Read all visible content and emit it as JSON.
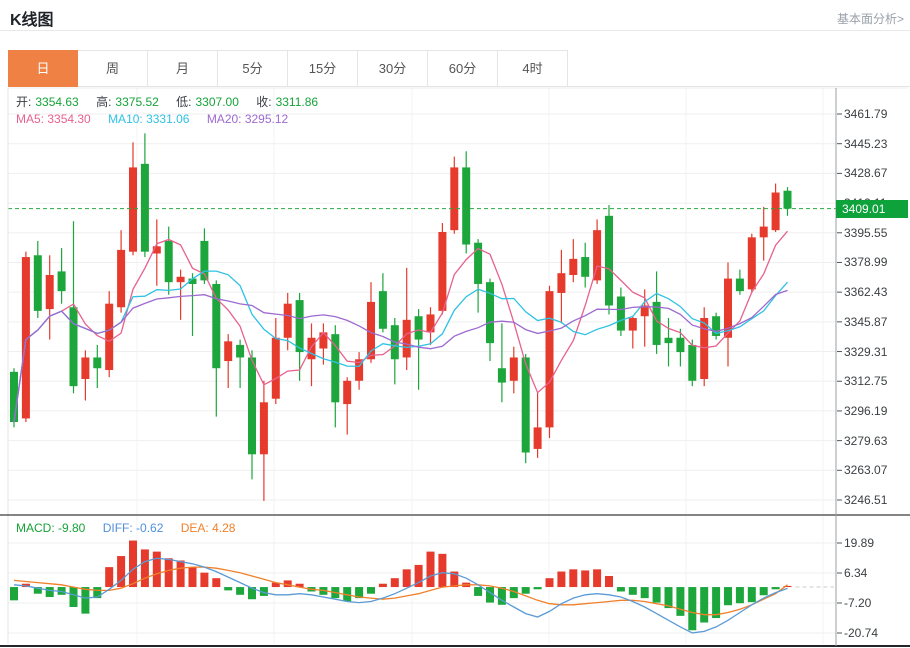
{
  "header": {
    "title": "K线图",
    "link": "基本面分析>"
  },
  "tabs": {
    "items": [
      {
        "label": "日",
        "active": true
      },
      {
        "label": "周",
        "active": false
      },
      {
        "label": "月",
        "active": false
      },
      {
        "label": "5分",
        "active": false
      },
      {
        "label": "15分",
        "active": false
      },
      {
        "label": "30分",
        "active": false
      },
      {
        "label": "60分",
        "active": false
      },
      {
        "label": "4时",
        "active": false
      }
    ]
  },
  "legend_k": {
    "open_label": "开:",
    "open_value": "3354.63",
    "high_label": "高:",
    "high_value": "3375.52",
    "low_label": "低:",
    "low_value": "3307.00",
    "close_label": "收:",
    "close_value": "3311.86"
  },
  "legend_ma": {
    "ma5": "MA5: 3354.30",
    "ma10": "MA10: 3331.06",
    "ma20": "MA20: 3295.12"
  },
  "legend_macd": {
    "macd": "MACD: -9.80",
    "diff": "DIFF: -0.62",
    "dea": "DEA: 4.28"
  },
  "price_axis": {
    "current": "3409.01"
  },
  "colors": {
    "up": "#e53a2c",
    "down": "#1ca63c",
    "ma5": "#e8618f",
    "ma10": "#2fc2e4",
    "ma20": "#9d6ad0",
    "diff_line": "#5b9bd5",
    "dea_line": "#f0802a",
    "current_line": "#2aa83e",
    "badge": "#0da23a",
    "tab_active": "#ee8143"
  },
  "chart_data": {
    "type": "candlestick",
    "title": "K线图 日K",
    "panels": [
      "kline",
      "macd"
    ],
    "price_axis_ticks": [
      3461.79,
      3445.23,
      3428.67,
      3412.11,
      3395.55,
      3378.99,
      3362.43,
      3345.87,
      3329.31,
      3312.75,
      3296.19,
      3279.63,
      3263.07,
      3246.51
    ],
    "current_price": 3409.01,
    "ma_periods": [
      5,
      10,
      20
    ],
    "candles": [
      [
        3318,
        3320,
        3287,
        3290
      ],
      [
        3292,
        3385,
        3290,
        3382
      ],
      [
        3383,
        3391,
        3348,
        3352
      ],
      [
        3353,
        3383,
        3336,
        3372
      ],
      [
        3374,
        3387,
        3356,
        3363
      ],
      [
        3354,
        3402,
        3306,
        3310
      ],
      [
        3314,
        3330,
        3302,
        3326
      ],
      [
        3326,
        3333,
        3309,
        3320
      ],
      [
        3319,
        3363,
        3315,
        3356
      ],
      [
        3354,
        3397,
        3351,
        3386
      ],
      [
        3385,
        3446,
        3383,
        3432
      ],
      [
        3434,
        3451,
        3382,
        3385
      ],
      [
        3384,
        3403,
        3366,
        3388
      ],
      [
        3391,
        3399,
        3361,
        3368
      ],
      [
        3368,
        3375,
        3347,
        3371
      ],
      [
        3370,
        3373,
        3338,
        3367
      ],
      [
        3391,
        3398,
        3367,
        3369
      ],
      [
        3367,
        3369,
        3293,
        3320
      ],
      [
        3324,
        3339,
        3309,
        3335
      ],
      [
        3333,
        3336,
        3309,
        3326
      ],
      [
        3326,
        3330,
        3258,
        3272
      ],
      [
        3272,
        3313,
        3246,
        3301
      ],
      [
        3303,
        3348,
        3300,
        3337
      ],
      [
        3337,
        3362,
        3330,
        3356
      ],
      [
        3358,
        3362,
        3313,
        3329
      ],
      [
        3325,
        3345,
        3310,
        3337
      ],
      [
        3331,
        3345,
        3322,
        3340
      ],
      [
        3339,
        3344,
        3287,
        3301
      ],
      [
        3300,
        3315,
        3283,
        3313
      ],
      [
        3313,
        3329,
        3308,
        3325
      ],
      [
        3325,
        3368,
        3323,
        3357
      ],
      [
        3363,
        3373,
        3340,
        3342
      ],
      [
        3344,
        3348,
        3311,
        3325
      ],
      [
        3326,
        3376,
        3319,
        3347
      ],
      [
        3349,
        3353,
        3308,
        3336
      ],
      [
        3340,
        3354,
        3333,
        3350
      ],
      [
        3352,
        3401,
        3350,
        3396
      ],
      [
        3397,
        3438,
        3395,
        3432
      ],
      [
        3432,
        3441,
        3384,
        3389
      ],
      [
        3390,
        3392,
        3351,
        3367
      ],
      [
        3368,
        3370,
        3324,
        3334
      ],
      [
        3320,
        3345,
        3301,
        3312
      ],
      [
        3313,
        3332,
        3306,
        3326
      ],
      [
        3326,
        3328,
        3267,
        3273
      ],
      [
        3275,
        3307,
        3270,
        3287
      ],
      [
        3287,
        3366,
        3281,
        3363
      ],
      [
        3362,
        3386,
        3345,
        3373
      ],
      [
        3372,
        3392,
        3368,
        3381
      ],
      [
        3382,
        3390,
        3365,
        3371
      ],
      [
        3369,
        3403,
        3367,
        3397
      ],
      [
        3405,
        3411,
        3350,
        3355
      ],
      [
        3360,
        3365,
        3338,
        3341
      ],
      [
        3341,
        3349,
        3331,
        3348
      ],
      [
        3349,
        3364,
        3332,
        3355
      ],
      [
        3357,
        3374,
        3328,
        3333
      ],
      [
        3337,
        3348,
        3321,
        3334
      ],
      [
        3337,
        3342,
        3321,
        3329
      ],
      [
        3333,
        3336,
        3310,
        3313
      ],
      [
        3314,
        3354,
        3310,
        3348
      ],
      [
        3349,
        3351,
        3336,
        3338
      ],
      [
        3337,
        3379,
        3321,
        3370
      ],
      [
        3370,
        3375,
        3361,
        3363
      ],
      [
        3364,
        3395,
        3362,
        3393
      ],
      [
        3393,
        3410,
        3380,
        3399
      ],
      [
        3397,
        3423,
        3396,
        3418
      ],
      [
        3419,
        3421,
        3405,
        3409
      ]
    ],
    "macd": {
      "axis_ticks": [
        19.89,
        6.34,
        -7.2,
        -20.74
      ],
      "hist": [
        -6,
        1.5,
        -3,
        -4.5,
        -3.5,
        -9,
        -12,
        -5,
        9,
        14,
        21,
        17,
        16,
        13,
        12,
        9,
        6.5,
        4,
        -1.5,
        -3.5,
        -5.5,
        -4,
        2,
        3,
        1.5,
        -2,
        -3.5,
        -5,
        -6.5,
        -5,
        -3,
        1.5,
        4,
        8,
        10,
        16,
        15,
        7,
        2,
        -4,
        -7,
        -8,
        -5,
        -3,
        -1,
        4,
        7,
        8,
        7.5,
        8,
        5,
        -2,
        -3.5,
        -5,
        -7,
        -9.5,
        -13,
        -19.5,
        -16,
        -14,
        -8.2,
        -7.3,
        -6.8,
        -3.7,
        -1,
        0.5
      ],
      "diff": [
        1,
        0.5,
        -0.5,
        -1.5,
        -2,
        -3.5,
        -5,
        -4.5,
        -1,
        3,
        8,
        11.5,
        13,
        12.5,
        11.5,
        10.5,
        9,
        7,
        4.5,
        2,
        -0.5,
        -2.5,
        -3.5,
        -3.5,
        -3,
        -3.5,
        -4.5,
        -5.5,
        -6.5,
        -7,
        -6.5,
        -5,
        -3,
        -0.5,
        2,
        5,
        6.5,
        6,
        4,
        1,
        -2.5,
        -6,
        -9,
        -12,
        -13.5,
        -11,
        -7.5,
        -5,
        -3.5,
        -3,
        -3.5,
        -4.5,
        -6.5,
        -9,
        -12,
        -15,
        -18,
        -20.7,
        -20,
        -18,
        -15,
        -11.5,
        -8,
        -5,
        -2.5,
        -0.62
      ],
      "dea": [
        3,
        2.5,
        2,
        1.5,
        1,
        0,
        -1,
        -1.5,
        -1.5,
        -0.5,
        1.5,
        4,
        6,
        7.5,
        8.5,
        9,
        9,
        8.5,
        7.5,
        6.5,
        5,
        3.5,
        2,
        1,
        0,
        -1,
        -1.5,
        -2.5,
        -3.5,
        -4.5,
        -5,
        -5.5,
        -5,
        -4,
        -3,
        -1.5,
        0,
        0.5,
        1,
        1,
        0.5,
        -0.5,
        -2,
        -4,
        -6,
        -7.5,
        -8,
        -8,
        -7.5,
        -7,
        -6.5,
        -6,
        -6,
        -6.5,
        -7.5,
        -8.5,
        -10,
        -11.5,
        -12.5,
        -12.5,
        -11.5,
        -10,
        -8,
        -5.5,
        -3,
        1
      ]
    }
  }
}
